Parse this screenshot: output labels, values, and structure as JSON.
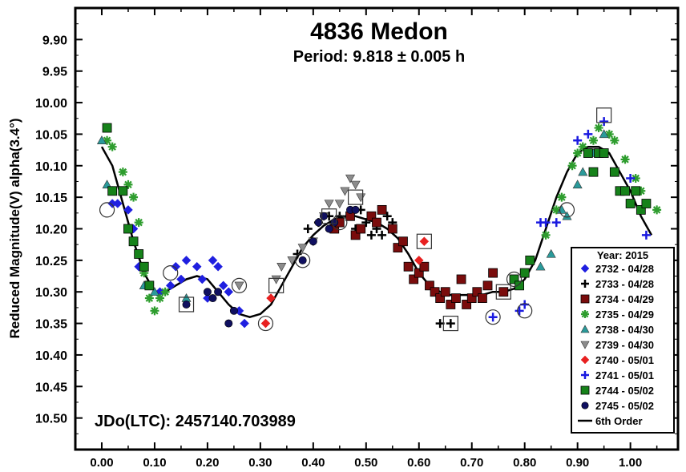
{
  "chart_data": {
    "type": "scatter",
    "title": "4836 Medon",
    "subtitle": "Period: 9.818 ± 0.005 h",
    "xlabel": "",
    "ylabel": "Reduced Magnitude(V) alpha(3.4°)",
    "annotation": "JDo(LTC): 2457140.703989",
    "xlim": [
      -0.05,
      1.09
    ],
    "ylim": [
      9.85,
      10.55
    ],
    "y_inverted": true,
    "x_ticks": [
      "0.00",
      "0.10",
      "0.20",
      "0.30",
      "0.40",
      "0.50",
      "0.60",
      "0.70",
      "0.80",
      "0.90",
      "1.00"
    ],
    "y_ticks": [
      "9.90",
      "9.95",
      "10.00",
      "10.05",
      "10.10",
      "10.15",
      "10.20",
      "10.25",
      "10.30",
      "10.35",
      "10.40",
      "10.45",
      "10.50"
    ],
    "grid": false,
    "legend_position": "bottom-right",
    "legend_title": "Year: 2015",
    "series": [
      {
        "name": "2732 - 04/28",
        "marker": "diamond",
        "color": "#1f1fe0",
        "points": [
          [
            0.02,
            10.16
          ],
          [
            0.03,
            10.16
          ],
          [
            0.05,
            10.17
          ],
          [
            0.06,
            10.2
          ],
          [
            0.07,
            10.26
          ],
          [
            0.09,
            10.29
          ],
          [
            0.11,
            10.3
          ],
          [
            0.13,
            10.29
          ],
          [
            0.14,
            10.26
          ],
          [
            0.15,
            10.28
          ],
          [
            0.16,
            10.25
          ],
          [
            0.18,
            10.26
          ],
          [
            0.19,
            10.28
          ],
          [
            0.21,
            10.25
          ],
          [
            0.22,
            10.26
          ],
          [
            0.24,
            10.3
          ],
          [
            0.26,
            10.33
          ],
          [
            0.27,
            10.35
          ],
          [
            0.2,
            10.31
          ],
          [
            0.23,
            10.29
          ]
        ]
      },
      {
        "name": "2733 - 04/28",
        "marker": "plus",
        "color": "#000000",
        "points": [
          [
            0.37,
            10.24
          ],
          [
            0.39,
            10.2
          ],
          [
            0.41,
            10.19
          ],
          [
            0.43,
            10.18
          ],
          [
            0.45,
            10.18
          ],
          [
            0.47,
            10.18
          ],
          [
            0.49,
            10.17
          ],
          [
            0.5,
            10.19
          ],
          [
            0.51,
            10.21
          ],
          [
            0.52,
            10.2
          ],
          [
            0.54,
            10.18
          ],
          [
            0.55,
            10.19
          ],
          [
            0.48,
            10.2
          ],
          [
            0.53,
            10.21
          ],
          [
            0.64,
            10.35
          ],
          [
            0.66,
            10.35
          ]
        ]
      },
      {
        "name": "2734 - 04/29",
        "marker": "square",
        "color": "#7a0c0c",
        "points": [
          [
            0.44,
            10.2
          ],
          [
            0.45,
            10.19
          ],
          [
            0.47,
            10.18
          ],
          [
            0.48,
            10.21
          ],
          [
            0.49,
            10.2
          ],
          [
            0.51,
            10.18
          ],
          [
            0.52,
            10.19
          ],
          [
            0.53,
            10.17
          ],
          [
            0.55,
            10.2
          ],
          [
            0.56,
            10.23
          ],
          [
            0.57,
            10.22
          ],
          [
            0.58,
            10.26
          ],
          [
            0.59,
            10.28
          ],
          [
            0.6,
            10.27
          ],
          [
            0.61,
            10.26
          ],
          [
            0.62,
            10.29
          ],
          [
            0.63,
            10.3
          ],
          [
            0.64,
            10.31
          ],
          [
            0.65,
            10.3
          ],
          [
            0.66,
            10.32
          ],
          [
            0.67,
            10.31
          ],
          [
            0.68,
            10.28
          ],
          [
            0.69,
            10.32
          ],
          [
            0.7,
            10.31
          ],
          [
            0.71,
            10.3
          ],
          [
            0.72,
            10.31
          ],
          [
            0.73,
            10.29
          ],
          [
            0.74,
            10.27
          ],
          [
            0.76,
            10.3
          ]
        ]
      },
      {
        "name": "2735 - 04/29",
        "marker": "asterisk",
        "color": "#2e9d2e",
        "points": [
          [
            0.01,
            10.06
          ],
          [
            0.02,
            10.07
          ],
          [
            0.04,
            10.11
          ],
          [
            0.05,
            10.13
          ],
          [
            0.06,
            10.15
          ],
          [
            0.07,
            10.19
          ],
          [
            0.08,
            10.27
          ],
          [
            0.09,
            10.31
          ],
          [
            0.1,
            10.33
          ],
          [
            0.11,
            10.31
          ],
          [
            0.12,
            10.3
          ],
          [
            0.89,
            10.1
          ],
          [
            0.9,
            10.08
          ],
          [
            0.91,
            10.07
          ],
          [
            0.93,
            10.06
          ],
          [
            0.94,
            10.04
          ],
          [
            0.96,
            10.05
          ],
          [
            0.97,
            10.06
          ],
          [
            0.99,
            10.09
          ],
          [
            1.01,
            10.12
          ],
          [
            1.02,
            10.14
          ],
          [
            1.03,
            10.16
          ],
          [
            1.05,
            10.17
          ],
          [
            0.84,
            10.21
          ],
          [
            0.86,
            10.17
          ],
          [
            0.87,
            10.15
          ]
        ]
      },
      {
        "name": "2738 - 04/30",
        "marker": "triangle-up",
        "color": "#2a9a9a",
        "points": [
          [
            0.0,
            10.06
          ],
          [
            0.01,
            10.13
          ],
          [
            0.02,
            10.14
          ],
          [
            0.08,
            10.29
          ],
          [
            0.1,
            10.3
          ],
          [
            0.16,
            10.31
          ],
          [
            0.83,
            10.26
          ],
          [
            0.85,
            10.24
          ],
          [
            0.88,
            10.18
          ],
          [
            0.9,
            10.13
          ],
          [
            0.91,
            10.11
          ],
          [
            0.93,
            10.08
          ],
          [
            0.95,
            10.05
          ],
          [
            0.87,
            10.17
          ]
        ]
      },
      {
        "name": "2739 - 04/30",
        "marker": "triangle-down",
        "color": "#8c8c8c",
        "points": [
          [
            0.33,
            10.28
          ],
          [
            0.34,
            10.26
          ],
          [
            0.36,
            10.25
          ],
          [
            0.38,
            10.23
          ],
          [
            0.4,
            10.22
          ],
          [
            0.42,
            10.18
          ],
          [
            0.43,
            10.16
          ],
          [
            0.45,
            10.16
          ],
          [
            0.46,
            10.14
          ],
          [
            0.47,
            10.12
          ],
          [
            0.48,
            10.13
          ],
          [
            0.49,
            10.15
          ],
          [
            0.26,
            10.29
          ]
        ]
      },
      {
        "name": "2740 - 05/01",
        "marker": "diamond",
        "color": "#e82020",
        "points": [
          [
            0.31,
            10.35
          ],
          [
            0.32,
            10.31
          ],
          [
            0.6,
            10.25
          ],
          [
            0.61,
            10.22
          ]
        ]
      },
      {
        "name": "2741 - 05/01",
        "marker": "plus",
        "color": "#1a1ae0",
        "points": [
          [
            0.74,
            10.34
          ],
          [
            0.79,
            10.33
          ],
          [
            0.8,
            10.32
          ],
          [
            0.83,
            10.19
          ],
          [
            0.84,
            10.19
          ],
          [
            0.86,
            10.19
          ],
          [
            0.9,
            10.06
          ],
          [
            0.92,
            10.05
          ],
          [
            0.95,
            10.03
          ],
          [
            1.0,
            10.12
          ],
          [
            1.03,
            10.21
          ]
        ]
      },
      {
        "name": "2744 - 05/02",
        "marker": "square",
        "color": "#16821a",
        "points": [
          [
            0.01,
            10.04
          ],
          [
            0.02,
            10.14
          ],
          [
            0.04,
            10.14
          ],
          [
            0.05,
            10.2
          ],
          [
            0.06,
            10.22
          ],
          [
            0.07,
            10.24
          ],
          [
            0.09,
            10.29
          ],
          [
            0.08,
            10.26
          ],
          [
            0.78,
            10.28
          ],
          [
            0.79,
            10.29
          ],
          [
            0.8,
            10.27
          ],
          [
            0.81,
            10.25
          ],
          [
            0.92,
            10.08
          ],
          [
            0.93,
            10.11
          ],
          [
            0.94,
            10.08
          ],
          [
            0.95,
            10.08
          ],
          [
            0.97,
            10.11
          ],
          [
            0.98,
            10.14
          ],
          [
            0.99,
            10.14
          ],
          [
            1.0,
            10.16
          ],
          [
            1.01,
            10.14
          ],
          [
            1.02,
            10.17
          ],
          [
            1.03,
            10.16
          ]
        ]
      },
      {
        "name": "2745 - 05/02",
        "marker": "circle",
        "color": "#101060",
        "points": [
          [
            0.2,
            10.3
          ],
          [
            0.21,
            10.31
          ],
          [
            0.22,
            10.3
          ],
          [
            0.24,
            10.35
          ],
          [
            0.25,
            10.33
          ],
          [
            0.38,
            10.25
          ],
          [
            0.4,
            10.22
          ],
          [
            0.41,
            10.19
          ],
          [
            0.42,
            10.18
          ],
          [
            0.43,
            10.2
          ],
          [
            0.44,
            10.19
          ],
          [
            0.47,
            10.17
          ],
          [
            0.48,
            10.17
          ],
          [
            0.16,
            10.32
          ]
        ]
      }
    ],
    "fit_name": "6th Order",
    "fit_curve": {
      "x": [
        0.0,
        0.02,
        0.04,
        0.06,
        0.08,
        0.1,
        0.12,
        0.14,
        0.16,
        0.18,
        0.2,
        0.22,
        0.24,
        0.26,
        0.28,
        0.3,
        0.32,
        0.34,
        0.36,
        0.38,
        0.4,
        0.42,
        0.44,
        0.46,
        0.48,
        0.5,
        0.52,
        0.54,
        0.56,
        0.58,
        0.6,
        0.62,
        0.64,
        0.66,
        0.68,
        0.7,
        0.72,
        0.74,
        0.76,
        0.78,
        0.8,
        0.82,
        0.84,
        0.86,
        0.88,
        0.9,
        0.92,
        0.94,
        0.96,
        0.98,
        1.0,
        1.02,
        1.04
      ],
      "y": [
        10.07,
        10.1,
        10.16,
        10.22,
        10.27,
        10.3,
        10.3,
        10.29,
        10.28,
        10.275,
        10.28,
        10.3,
        10.32,
        10.335,
        10.34,
        10.335,
        10.32,
        10.29,
        10.26,
        10.23,
        10.21,
        10.195,
        10.185,
        10.18,
        10.18,
        10.185,
        10.19,
        10.2,
        10.215,
        10.24,
        10.27,
        10.29,
        10.3,
        10.305,
        10.305,
        10.305,
        10.305,
        10.3,
        10.3,
        10.295,
        10.28,
        10.25,
        10.2,
        10.15,
        10.11,
        10.08,
        10.07,
        10.07,
        10.08,
        10.11,
        10.14,
        10.18,
        10.21
      ]
    },
    "circled_points": [
      [
        0.01,
        10.17
      ],
      [
        0.13,
        10.27
      ],
      [
        0.26,
        10.29
      ],
      [
        0.31,
        10.35
      ],
      [
        0.38,
        10.25
      ],
      [
        0.45,
        10.19
      ],
      [
        0.74,
        10.34
      ],
      [
        0.8,
        10.33
      ],
      [
        0.78,
        10.28
      ],
      [
        0.88,
        10.17
      ]
    ],
    "boxed_points": [
      [
        0.16,
        10.32
      ],
      [
        0.33,
        10.29
      ],
      [
        0.43,
        10.18
      ],
      [
        0.48,
        10.15
      ],
      [
        0.61,
        10.22
      ],
      [
        0.66,
        10.35
      ],
      [
        0.76,
        10.3
      ],
      [
        0.95,
        10.02
      ]
    ]
  }
}
